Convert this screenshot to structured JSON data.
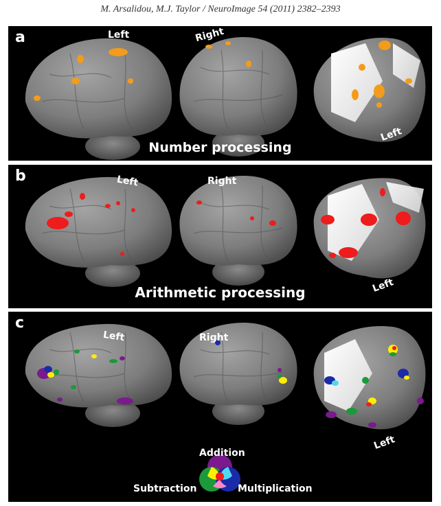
{
  "header": {
    "citation": "M. Arsalidou, M.J. Taylor / NeuroImage 54 (2011) 2382–2393"
  },
  "colors": {
    "number": "#f39c1b",
    "arithmetic": "#ee1c1c",
    "addition": "#7a1a8c",
    "subtraction": "#1a9a3a",
    "multiplication": "#1a2aa8",
    "overlap_add_sub": "#ffee00",
    "overlap_add_mul": "#50d8f0",
    "overlap_sub_mul": "#ff88c8",
    "overlap_all": "#ee1c1c"
  },
  "panels": [
    {
      "letter": "a",
      "caption": "Number processing",
      "view_labels": [
        "Left",
        "Right",
        "Left"
      ]
    },
    {
      "letter": "b",
      "caption": "Arithmetic processing",
      "view_labels": [
        "Left",
        "Right",
        "Left"
      ]
    },
    {
      "letter": "c",
      "caption": "",
      "view_labels": [
        "Left",
        "Right",
        "Left"
      ],
      "legend": {
        "addition": "Addition",
        "subtraction": "Subtraction",
        "multiplication": "Multiplication"
      }
    }
  ]
}
